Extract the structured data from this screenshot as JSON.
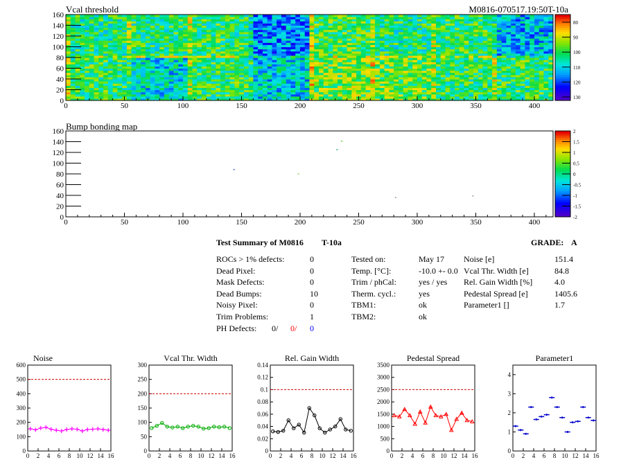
{
  "header": {
    "title": "Vcal threshold",
    "id": "M0816-070517.19:50T-10a"
  },
  "bump": {
    "title": "Bump bonding map"
  },
  "summary": {
    "title": "Test Summary of M0816",
    "temp": "T-10a",
    "grade_label": "GRADE:",
    "grade": "A",
    "left": [
      {
        "label": "ROCs > 1% defects:",
        "value": "0"
      },
      {
        "label": "Dead Pixel:",
        "value": "0"
      },
      {
        "label": "Mask Defects:",
        "value": "0"
      },
      {
        "label": "Dead Bumps:",
        "value": "10"
      },
      {
        "label": "Noisy Pixel:",
        "value": "0"
      },
      {
        "label": "Trim Problems:",
        "value": "1"
      }
    ],
    "ph": {
      "label": "PH Defects:",
      "v1": "0/",
      "v2": "0/",
      "v3": "0",
      "c2": "#ff0000",
      "c3": "#0000ff"
    },
    "middle": [
      {
        "label": "Tested on:",
        "value": "May 17"
      },
      {
        "label": "Temp. [°C]:",
        "value": "-10.0 +- 0.0"
      },
      {
        "label": "Trim / phCal:",
        "value": "yes / yes"
      },
      {
        "label": "Therm. cycl.:",
        "value": "yes"
      },
      {
        "label": "TBM1:",
        "value": "ok"
      },
      {
        "label": "TBM2:",
        "value": "ok"
      }
    ],
    "right": [
      {
        "label": "Noise [e]",
        "value": "151.4"
      },
      {
        "label": "Vcal Thr. Width [e]",
        "value": "84.8"
      },
      {
        "label": "Rel. Gain Width [%]",
        "value": "4.0"
      },
      {
        "label": "Pedestal Spread [e]",
        "value": "1405.6"
      },
      {
        "label": "Parameter1 []",
        "value": "1.7"
      }
    ]
  },
  "chart_data": [
    {
      "type": "heatmap",
      "title": "Vcal threshold",
      "xlim": [
        0,
        416
      ],
      "ylim": [
        0,
        160
      ],
      "xticks": [
        "0",
        "50",
        "100",
        "150",
        "200",
        "250",
        "300",
        "350",
        "400"
      ],
      "yticks": [
        "0",
        "20",
        "40",
        "60",
        "80",
        "100",
        "120",
        "140",
        "160"
      ],
      "colorbar_ticks": [
        "80",
        "90",
        "100",
        "110",
        "120",
        "130"
      ],
      "colorbar_range": [
        78,
        136
      ],
      "roc_mean_top": [
        108,
        109,
        110,
        95,
        111,
        108,
        110,
        99
      ],
      "roc_mean_bottom": [
        110,
        102,
        110,
        101,
        115,
        114,
        109,
        110
      ]
    },
    {
      "type": "heatmap",
      "title": "Bump bonding map",
      "xlim": [
        0,
        416
      ],
      "ylim": [
        0,
        160
      ],
      "xticks": [
        "0",
        "50",
        "100",
        "150",
        "200",
        "250",
        "300",
        "350",
        "400"
      ],
      "yticks": [
        "0",
        "20",
        "40",
        "60",
        "80",
        "100",
        "120",
        "140",
        "160"
      ],
      "colorbar_ticks": [
        "2",
        "1.5",
        "1",
        "0.5",
        "0",
        "-0.5",
        "-1",
        "-1.5",
        "-2"
      ],
      "points": [
        {
          "x": 235,
          "y": 142,
          "color": "#66cc33"
        },
        {
          "x": 231,
          "y": 126,
          "color": "#22aa88"
        },
        {
          "x": 143,
          "y": 89,
          "color": "#3366cc"
        },
        {
          "x": 198,
          "y": 81,
          "color": "#99cc66"
        },
        {
          "x": 281,
          "y": 37,
          "color": "#999999"
        },
        {
          "x": 347,
          "y": 40,
          "color": "#999999"
        }
      ]
    },
    {
      "type": "line",
      "title": "Noise",
      "color": "#ff00ff",
      "marker": "plus",
      "xlim": [
        0,
        16
      ],
      "ylim": [
        0,
        600
      ],
      "yticks": [
        "0",
        "100",
        "200",
        "300",
        "400",
        "500",
        "600"
      ],
      "xticks": [
        "0",
        "2",
        "4",
        "6",
        "8",
        "10",
        "12",
        "14",
        "16"
      ],
      "limit": 500,
      "x": [
        0.5,
        1.5,
        2.5,
        3.5,
        4.5,
        5.5,
        6.5,
        7.5,
        8.5,
        9.5,
        10.5,
        11.5,
        12.5,
        13.5,
        14.5,
        15.5
      ],
      "values": [
        155,
        148,
        160,
        165,
        152,
        145,
        140,
        150,
        155,
        152,
        140,
        150,
        152,
        155,
        150,
        145
      ]
    },
    {
      "type": "line",
      "title": "Vcal Thr. Width",
      "color": "#00aa00",
      "marker": "circle",
      "xlim": [
        0,
        16
      ],
      "ylim": [
        0,
        300
      ],
      "yticks": [
        "0",
        "50",
        "100",
        "150",
        "200",
        "250",
        "300"
      ],
      "xticks": [
        "0",
        "2",
        "4",
        "6",
        "8",
        "10",
        "12",
        "14",
        "16"
      ],
      "limit": 200,
      "x": [
        0.5,
        1.5,
        2.5,
        3.5,
        4.5,
        5.5,
        6.5,
        7.5,
        8.5,
        9.5,
        10.5,
        11.5,
        12.5,
        13.5,
        14.5,
        15.5
      ],
      "values": [
        80,
        88,
        98,
        85,
        82,
        85,
        80,
        85,
        88,
        85,
        78,
        80,
        85,
        83,
        85,
        80
      ]
    },
    {
      "type": "line",
      "title": "Rel. Gain Width",
      "color": "#000000",
      "marker": "circle",
      "xlim": [
        0,
        16
      ],
      "ylim": [
        0,
        0.14
      ],
      "yticks": [
        "0",
        "0.02",
        "0.04",
        "0.06",
        "0.08",
        "0.1",
        "0.12",
        "0.14"
      ],
      "xticks": [
        "0",
        "2",
        "4",
        "6",
        "8",
        "10",
        "12",
        "14",
        "16"
      ],
      "limit": 0.1,
      "x": [
        0.5,
        1.5,
        2.5,
        3.5,
        4.5,
        5.5,
        6.5,
        7.5,
        8.5,
        9.5,
        10.5,
        11.5,
        12.5,
        13.5,
        14.5,
        15.5
      ],
      "values": [
        0.032,
        0.031,
        0.033,
        0.05,
        0.037,
        0.043,
        0.03,
        0.07,
        0.058,
        0.037,
        0.03,
        0.035,
        0.04,
        0.052,
        0.035,
        0.033
      ]
    },
    {
      "type": "line",
      "title": "Pedestal Spread",
      "color": "#ff0000",
      "marker": "triangle",
      "xlim": [
        0,
        16
      ],
      "ylim": [
        0,
        3500
      ],
      "yticks": [
        "0",
        "500",
        "1000",
        "1500",
        "2000",
        "2500",
        "3000",
        "3500"
      ],
      "xticks": [
        "0",
        "2",
        "4",
        "6",
        "8",
        "10",
        "12",
        "14",
        "16"
      ],
      "limit": 2500,
      "x": [
        0.5,
        1.5,
        2.5,
        3.5,
        4.5,
        5.5,
        6.5,
        7.5,
        8.5,
        9.5,
        10.5,
        11.5,
        12.5,
        13.5,
        14.5,
        15.5
      ],
      "values": [
        1450,
        1400,
        1700,
        1450,
        1100,
        1600,
        1150,
        1800,
        1450,
        1400,
        1500,
        850,
        1300,
        1550,
        1250,
        1200
      ]
    },
    {
      "type": "scatter",
      "title": "Parameter1",
      "color": "#0000cc",
      "marker": "hbar",
      "xlim": [
        0,
        16
      ],
      "ylim": [
        0,
        4.5
      ],
      "yticks": [
        "0",
        "1",
        "2",
        "3",
        "4"
      ],
      "xticks": [
        "0",
        "2",
        "4",
        "6",
        "8",
        "10",
        "12",
        "14",
        "16"
      ],
      "x": [
        0.5,
        1.5,
        2.5,
        3.5,
        4.5,
        5.5,
        6.5,
        7.5,
        8.5,
        9.5,
        10.5,
        11.5,
        12.5,
        13.5,
        14.5,
        15.5
      ],
      "values": [
        1.3,
        1.1,
        0.9,
        2.3,
        1.65,
        1.8,
        1.9,
        2.8,
        2.3,
        1.75,
        1.0,
        1.5,
        1.55,
        2.3,
        1.75,
        1.6
      ]
    }
  ]
}
